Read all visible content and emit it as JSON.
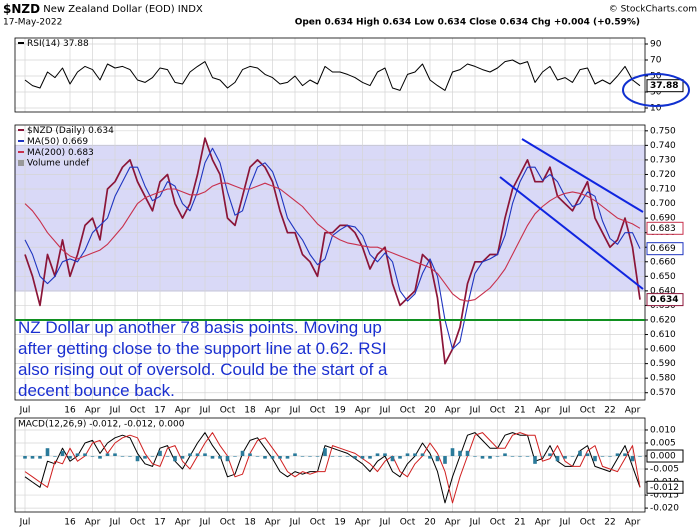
{
  "header": {
    "symbol": "$NZD",
    "name": "New Zealand Dollar (EOD) INDX",
    "date": "17-May-2022",
    "quote": "Open 0.634 High 0.634 Low 0.634 Close 0.634 Chg +0.004 (+0.59%)",
    "copyright": "© StockCharts.com"
  },
  "chart_data": [
    {
      "type": "line",
      "ylim": [
        5,
        97.5
      ],
      "yticks": [
        90,
        70,
        50,
        30,
        10
      ],
      "grid": true,
      "series": [
        {
          "name": "RSI(14)",
          "color": "#000000",
          "values": [
            45,
            38,
            35,
            55,
            48,
            60,
            40,
            55,
            62,
            58,
            45,
            65,
            60,
            62,
            58,
            45,
            42,
            48,
            60,
            58,
            42,
            40,
            55,
            62,
            68,
            48,
            45,
            35,
            42,
            58,
            62,
            60,
            52,
            48,
            40,
            42,
            50,
            38,
            45,
            40,
            62,
            55,
            55,
            52,
            48,
            42,
            38,
            55,
            60,
            35,
            32,
            52,
            55,
            65,
            45,
            38,
            32,
            55,
            58,
            65,
            62,
            58,
            55,
            60,
            68,
            70,
            65,
            68,
            42,
            55,
            62,
            45,
            48,
            42,
            58,
            60,
            40,
            45,
            40,
            50,
            62,
            45,
            37.88
          ]
        }
      ]
    },
    {
      "type": "line",
      "ylim": [
        0.565,
        0.754
      ],
      "grid": true,
      "categories": [
        "Jul",
        null,
        null,
        null,
        null,
        null,
        "16",
        null,
        null,
        "Apr",
        null,
        null,
        "Jul",
        null,
        null,
        "Oct",
        null,
        null,
        "17",
        null,
        null,
        "Apr",
        null,
        null,
        "Jul",
        null,
        null,
        "Oct",
        null,
        null,
        "18",
        null,
        null,
        "Apr",
        null,
        null,
        "Jul",
        null,
        null,
        "Oct",
        null,
        null,
        "19",
        null,
        null,
        "Apr",
        null,
        null,
        "Jul",
        null,
        null,
        "Oct",
        null,
        null,
        "20",
        null,
        null,
        "Apr",
        null,
        null,
        "Jul",
        null,
        null,
        "Oct",
        null,
        null,
        "21",
        null,
        null,
        "Apr",
        null,
        null,
        "Jul",
        null,
        null,
        "Oct",
        null,
        null,
        "22",
        null,
        null,
        "Apr",
        null
      ],
      "yticks": [
        {
          "value": 0.75,
          "label": "0.750"
        },
        {
          "value": 0.74,
          "label": "0.740"
        },
        {
          "value": 0.73,
          "label": "0.730"
        },
        {
          "value": 0.72,
          "label": "0.720"
        },
        {
          "value": 0.71,
          "label": "0.710"
        },
        {
          "value": 0.7,
          "label": "0.700"
        },
        {
          "value": 0.69,
          "label": "0.690"
        },
        {
          "value": 0.68,
          "label": "0.680"
        },
        {
          "value": 0.67,
          "label": "0.670"
        },
        {
          "value": 0.66,
          "label": "0.660"
        },
        {
          "value": 0.65,
          "label": "0.650"
        },
        {
          "value": 0.64,
          "label": "0.640"
        },
        {
          "value": 0.63,
          "label": "0.630"
        },
        {
          "value": 0.62,
          "label": "0.620"
        },
        {
          "value": 0.61,
          "label": "0.610"
        },
        {
          "value": 0.6,
          "label": "0.600"
        },
        {
          "value": 0.59,
          "label": "0.590"
        },
        {
          "value": 0.58,
          "label": "0.580"
        },
        {
          "value": 0.57,
          "label": "0.570"
        }
      ],
      "series": [
        {
          "name": "$NZD (Daily)",
          "color": "#8b1538",
          "values": [
            0.665,
            0.65,
            0.63,
            0.665,
            0.65,
            0.675,
            0.65,
            0.665,
            0.685,
            0.69,
            0.675,
            0.71,
            0.715,
            0.725,
            0.73,
            0.715,
            0.705,
            0.695,
            0.715,
            0.72,
            0.7,
            0.69,
            0.7,
            0.72,
            0.745,
            0.73,
            0.72,
            0.69,
            0.685,
            0.705,
            0.725,
            0.73,
            0.725,
            0.715,
            0.695,
            0.68,
            0.68,
            0.665,
            0.66,
            0.65,
            0.68,
            0.68,
            0.685,
            0.685,
            0.68,
            0.67,
            0.655,
            0.665,
            0.67,
            0.645,
            0.63,
            0.635,
            0.64,
            0.665,
            0.66,
            0.635,
            0.59,
            0.6,
            0.615,
            0.645,
            0.66,
            0.66,
            0.665,
            0.665,
            0.69,
            0.71,
            0.72,
            0.73,
            0.715,
            0.715,
            0.725,
            0.705,
            0.7,
            0.695,
            0.705,
            0.715,
            0.69,
            0.68,
            0.67,
            0.675,
            0.69,
            0.67,
            0.634
          ]
        },
        {
          "name": "MA(50)",
          "color": "#1f35c0",
          "values": [
            0.675,
            0.665,
            0.65,
            0.645,
            0.65,
            0.66,
            0.662,
            0.66,
            0.668,
            0.68,
            0.685,
            0.69,
            0.705,
            0.715,
            0.725,
            0.725,
            0.712,
            0.702,
            0.705,
            0.715,
            0.712,
            0.7,
            0.695,
            0.708,
            0.728,
            0.738,
            0.728,
            0.708,
            0.692,
            0.695,
            0.712,
            0.725,
            0.728,
            0.722,
            0.708,
            0.69,
            0.682,
            0.675,
            0.665,
            0.658,
            0.662,
            0.678,
            0.682,
            0.685,
            0.684,
            0.678,
            0.665,
            0.66,
            0.666,
            0.66,
            0.64,
            0.633,
            0.638,
            0.652,
            0.662,
            0.65,
            0.62,
            0.6,
            0.605,
            0.63,
            0.652,
            0.66,
            0.662,
            0.665,
            0.678,
            0.7,
            0.715,
            0.725,
            0.725,
            0.716,
            0.72,
            0.715,
            0.705,
            0.698,
            0.7,
            0.708,
            0.705,
            0.688,
            0.676,
            0.672,
            0.68,
            0.68,
            0.669
          ]
        },
        {
          "name": "MA(200)",
          "color": "#c8304c",
          "values": [
            0.7,
            0.695,
            0.688,
            0.68,
            0.674,
            0.668,
            0.664,
            0.662,
            0.664,
            0.666,
            0.668,
            0.672,
            0.678,
            0.684,
            0.692,
            0.7,
            0.704,
            0.706,
            0.708,
            0.71,
            0.71,
            0.708,
            0.706,
            0.706,
            0.708,
            0.712,
            0.714,
            0.714,
            0.712,
            0.71,
            0.71,
            0.712,
            0.714,
            0.712,
            0.71,
            0.706,
            0.702,
            0.698,
            0.692,
            0.686,
            0.682,
            0.678,
            0.675,
            0.673,
            0.672,
            0.671,
            0.67,
            0.67,
            0.668,
            0.666,
            0.664,
            0.662,
            0.66,
            0.658,
            0.656,
            0.652,
            0.645,
            0.638,
            0.634,
            0.633,
            0.634,
            0.638,
            0.642,
            0.648,
            0.655,
            0.665,
            0.675,
            0.685,
            0.693,
            0.698,
            0.702,
            0.705,
            0.707,
            0.708,
            0.707,
            0.705,
            0.702,
            0.698,
            0.694,
            0.69,
            0.688,
            0.686,
            0.683
          ]
        }
      ],
      "volume_legend": "Volume undef",
      "annotation": [
        "NZ Dollar up another 78 basis points. Moving up",
        "after getting close to the support line at 0.62. RSI",
        "also rising out of oversold. Could be the start of a",
        "decent bounce back."
      ]
    },
    {
      "type": "line",
      "ylim": [
        -0.0215,
        0.0146
      ],
      "grid": true,
      "legend": "MACD(12,26,9) -0.012, -0.012, 0.000",
      "categories": [
        "Jul",
        null,
        null,
        null,
        null,
        null,
        "16",
        null,
        null,
        "Apr",
        null,
        null,
        "Jul",
        null,
        null,
        "Oct",
        null,
        null,
        "17",
        null,
        null,
        "Apr",
        null,
        null,
        "Jul",
        null,
        null,
        "Oct",
        null,
        null,
        "18",
        null,
        null,
        "Apr",
        null,
        null,
        "Jul",
        null,
        null,
        "Oct",
        null,
        null,
        "19",
        null,
        null,
        "Apr",
        null,
        null,
        "Jul",
        null,
        null,
        "Oct",
        null,
        null,
        "20",
        null,
        null,
        "Apr",
        null,
        null,
        "Jul",
        null,
        null,
        "Oct",
        null,
        null,
        "21",
        null,
        null,
        "Apr",
        null,
        null,
        "Jul",
        null,
        null,
        "Oct",
        null,
        null,
        "22",
        null,
        null,
        "Apr",
        null
      ],
      "yticks": [
        {
          "value": 0.01,
          "label": "0.010"
        },
        {
          "value": 0.005,
          "label": "0.005"
        },
        {
          "value": 0,
          "label": "0.000"
        },
        {
          "value": -0.005,
          "label": "-0.005"
        },
        {
          "value": -0.01,
          "label": "-0.010"
        },
        {
          "value": -0.015,
          "label": "-0.015"
        },
        {
          "value": -0.02,
          "label": "-0.020"
        }
      ],
      "tags": [
        {
          "value": 0,
          "label": "0.000"
        },
        {
          "value": -0.012,
          "label": "-0.012"
        }
      ],
      "series": [
        {
          "name": "MACD",
          "color": "#000000",
          "values": [
            -0.008,
            -0.01,
            -0.012,
            -0.002,
            -0.003,
            0.003,
            -0.002,
            0,
            0.005,
            0.006,
            0.001,
            0.005,
            0.007,
            0.008,
            0.007,
            0.001,
            -0.003,
            -0.004,
            0.003,
            0.004,
            -0.002,
            -0.005,
            0,
            0.005,
            0.009,
            0.004,
            0,
            -0.008,
            -0.007,
            0.001,
            0.006,
            0.007,
            0.003,
            -0.001,
            -0.006,
            -0.008,
            -0.006,
            -0.007,
            -0.006,
            -0.006,
            0.004,
            0.003,
            0.002,
            0.001,
            -0.001,
            -0.003,
            -0.006,
            -0.002,
            0,
            -0.006,
            -0.008,
            -0.003,
            0,
            0.005,
            0.001,
            -0.006,
            -0.018,
            -0.008,
            0,
            0.008,
            0.009,
            0.006,
            0.003,
            0.003,
            0.008,
            0.009,
            0.008,
            0.008,
            -0.002,
            -0.001,
            0.004,
            -0.002,
            -0.004,
            -0.004,
            0.002,
            0.004,
            -0.004,
            -0.005,
            -0.006,
            -0.001,
            0.004,
            -0.004,
            -0.012
          ]
        },
        {
          "name": "Signal",
          "color": "#d02020",
          "values": [
            -0.006,
            -0.008,
            -0.01,
            -0.012,
            -0.002,
            -0.003,
            0.003,
            -0.002,
            0,
            0.005,
            0.006,
            0.001,
            0.005,
            0.007,
            0.008,
            0.007,
            0.001,
            -0.003,
            -0.004,
            0.003,
            0.004,
            -0.002,
            -0.005,
            0,
            0.005,
            0.009,
            0.004,
            0,
            -0.008,
            -0.007,
            0.001,
            0.006,
            0.007,
            0.003,
            -0.001,
            -0.006,
            -0.008,
            -0.006,
            -0.007,
            -0.006,
            -0.006,
            0.004,
            0.003,
            0.002,
            0.001,
            -0.001,
            -0.003,
            -0.006,
            -0.002,
            0,
            -0.006,
            -0.008,
            -0.003,
            0,
            0.005,
            0.001,
            -0.006,
            -0.018,
            -0.008,
            0,
            0.008,
            0.009,
            0.006,
            0.003,
            0.003,
            0.008,
            0.009,
            0.008,
            0.008,
            -0.002,
            -0.001,
            0.004,
            -0.002,
            -0.004,
            -0.004,
            0.002,
            0.004,
            -0.004,
            -0.005,
            -0.006,
            -0.001,
            0.004,
            -0.012
          ]
        },
        {
          "name": "Histogram",
          "color": "#2a7a9a",
          "style": "bars",
          "values": [
            -0.001,
            -0.001,
            -0.001,
            0.003,
            0,
            0.002,
            -0.001,
            0.001,
            0.001,
            0,
            -0.001,
            0.001,
            0.001,
            0,
            0,
            -0.002,
            -0.001,
            0,
            0.002,
            0,
            -0.002,
            -0.001,
            0.001,
            0.001,
            0.001,
            -0.001,
            -0.001,
            -0.002,
            0,
            0.002,
            0.001,
            0,
            -0.001,
            -0.001,
            -0.001,
            -0.001,
            0.001,
            0,
            0,
            0,
            0.003,
            0,
            0,
            0,
            -0.001,
            -0.001,
            -0.001,
            0.001,
            0.001,
            -0.002,
            -0.001,
            0.001,
            0.001,
            0.001,
            -0.001,
            -0.002,
            -0.003,
            0.003,
            0.002,
            0.002,
            0,
            -0.001,
            -0.001,
            0,
            0.001,
            0,
            0,
            0,
            -0.003,
            0,
            0.001,
            -0.002,
            -0.001,
            0,
            0.002,
            0.001,
            -0.002,
            0,
            0,
            0.001,
            0.001,
            -0.002,
            0
          ]
        }
      ]
    }
  ]
}
